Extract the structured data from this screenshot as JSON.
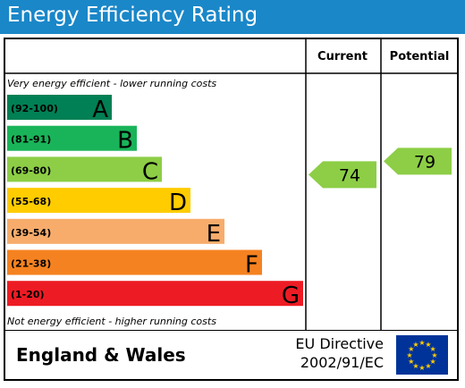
{
  "title": "Energy Efficiency Rating",
  "columns": {
    "current": "Current",
    "potential": "Potential"
  },
  "top_note": "Very energy efficient - lower running costs",
  "bottom_note": "Not energy efficient - higher running costs",
  "colors": {
    "title_bg": "#1a87c8",
    "band_A": "#008054",
    "band_B": "#19b459",
    "band_C": "#8dce46",
    "band_D": "#ffcc00",
    "band_E": "#f7ac6b",
    "band_F": "#f58220",
    "band_G": "#ed1c24",
    "eu_flag": "#003399",
    "eu_star": "#ffcc00"
  },
  "chart_data": {
    "type": "bar",
    "categories": [
      "(92-100)",
      "(81-91)",
      "(69-80)",
      "(55-68)",
      "(39-54)",
      "(21-38)",
      "(1-20)"
    ],
    "bands": [
      {
        "letter": "A",
        "range": "(92-100)",
        "min": 92,
        "max": 100
      },
      {
        "letter": "B",
        "range": "(81-91)",
        "min": 81,
        "max": 91
      },
      {
        "letter": "C",
        "range": "(69-80)",
        "min": 69,
        "max": 80
      },
      {
        "letter": "D",
        "range": "(55-68)",
        "min": 55,
        "max": 68
      },
      {
        "letter": "E",
        "range": "(39-54)",
        "min": 39,
        "max": 54
      },
      {
        "letter": "F",
        "range": "(21-38)",
        "min": 21,
        "max": 38
      },
      {
        "letter": "G",
        "range": "(1-20)",
        "min": 1,
        "max": 20
      }
    ],
    "current": 74,
    "potential": 79
  },
  "footer": {
    "region": "England & Wales",
    "directive_line1": "EU Directive",
    "directive_line2": "2002/91/EC",
    "flag_icon": "eu-flag-icon"
  }
}
